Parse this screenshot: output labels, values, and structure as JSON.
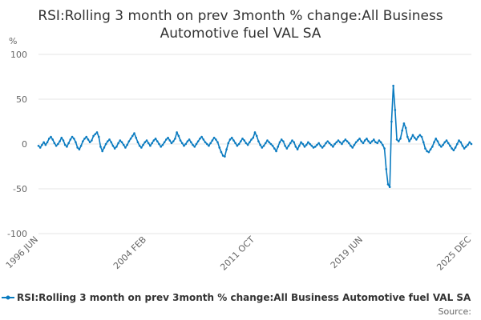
{
  "chart_data": {
    "type": "line",
    "title_lines": [
      "RSI:Rolling 3 month on prev 3month % change:All Business",
      "Automotive fuel VAL SA"
    ],
    "ylabel": "%",
    "ylim": [
      -100,
      100
    ],
    "yticks": [
      100,
      50,
      0,
      -50,
      -100
    ],
    "grid": true,
    "legend_position": "bottom",
    "x_start": "1996 JUN",
    "x_end": "2025 DEC",
    "xticks": [
      "1996 JUN",
      "2004 FEB",
      "2011 OCT",
      "2019 JUN",
      "2025 DEC"
    ],
    "series": [
      {
        "name": "RSI:Rolling 3 month on prev 3month % change:All Business Automotive fuel VAL SA",
        "color": "#0a7bc0",
        "values": [
          -2,
          -4,
          -1,
          2,
          -1,
          2,
          6,
          8,
          5,
          1,
          -2,
          0,
          3,
          7,
          4,
          -1,
          -3,
          1,
          5,
          8,
          6,
          2,
          -4,
          -6,
          -2,
          3,
          6,
          8,
          5,
          2,
          4,
          9,
          11,
          13,
          8,
          -3,
          -8,
          -4,
          0,
          3,
          5,
          2,
          -2,
          -5,
          -3,
          1,
          4,
          2,
          -1,
          -4,
          -1,
          3,
          6,
          9,
          12,
          7,
          2,
          -2,
          -4,
          -1,
          2,
          4,
          1,
          -2,
          1,
          4,
          6,
          3,
          0,
          -3,
          -1,
          2,
          5,
          7,
          4,
          1,
          3,
          6,
          13,
          9,
          4,
          1,
          -2,
          0,
          3,
          5,
          2,
          -1,
          -3,
          0,
          3,
          6,
          8,
          5,
          2,
          0,
          -2,
          1,
          4,
          7,
          5,
          2,
          -4,
          -9,
          -13,
          -14,
          -6,
          1,
          5,
          7,
          4,
          1,
          -2,
          0,
          3,
          6,
          4,
          1,
          -1,
          2,
          5,
          7,
          13,
          9,
          3,
          -1,
          -4,
          -2,
          1,
          4,
          2,
          0,
          -2,
          -5,
          -8,
          -3,
          2,
          5,
          3,
          -2,
          -5,
          -2,
          1,
          4,
          2,
          -3,
          -6,
          -2,
          2,
          0,
          -3,
          -1,
          2,
          0,
          -2,
          -4,
          -3,
          -1,
          1,
          -2,
          -4,
          -2,
          1,
          3,
          1,
          -1,
          -3,
          0,
          2,
          4,
          2,
          0,
          3,
          5,
          3,
          1,
          -2,
          -4,
          -1,
          2,
          4,
          6,
          3,
          1,
          4,
          6,
          3,
          1,
          3,
          5,
          2,
          1,
          4,
          2,
          -1,
          -5,
          -28,
          -45,
          -48,
          25,
          65,
          38,
          5,
          3,
          6,
          15,
          23,
          18,
          8,
          3,
          6,
          10,
          7,
          5,
          8,
          10,
          8,
          2,
          -5,
          -8,
          -9,
          -6,
          -3,
          2,
          6,
          3,
          -1,
          -3,
          -1,
          2,
          4,
          1,
          -2,
          -5,
          -7,
          -4,
          0,
          4,
          2,
          -2,
          -5,
          -3,
          -1,
          2,
          0
        ]
      }
    ]
  },
  "legend": {
    "label": "RSI:Rolling 3 month on prev 3month % change:All Business Automotive fuel VAL SA"
  },
  "source": {
    "label": "Source:"
  }
}
